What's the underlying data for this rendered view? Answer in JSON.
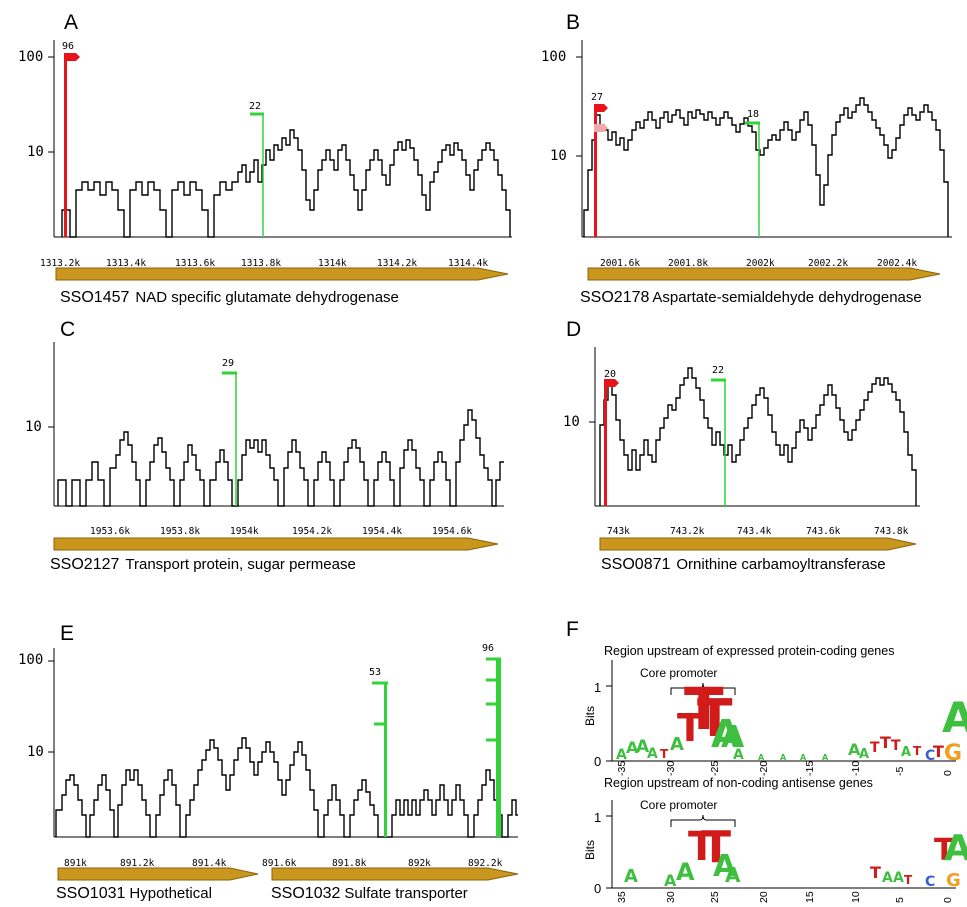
{
  "panels": [
    {
      "letter": "A",
      "yticks": [
        "100",
        "10"
      ],
      "xticks": [
        "1313.2k",
        "1313.4k",
        "1313.6k",
        "1313.8k",
        "1314k",
        "1314.2k",
        "1314.4k"
      ],
      "markers": [
        {
          "label": "96",
          "color": "red",
          "kind": "arrow"
        },
        {
          "label": "22",
          "color": "green",
          "kind": "flag"
        }
      ],
      "genes": [
        {
          "id": "SSO1457",
          "name": "NAD specific glutamate dehydrogenase"
        }
      ]
    },
    {
      "letter": "B",
      "yticks": [
        "100",
        "10"
      ],
      "xticks": [
        "2001.6k",
        "2001.8k",
        "2002k",
        "2002.2k",
        "2002.4k"
      ],
      "markers": [
        {
          "label": "27",
          "color": "red",
          "kind": "arrow"
        },
        {
          "label": "18",
          "color": "green",
          "kind": "flag"
        }
      ],
      "genes": [
        {
          "id": "SSO2178",
          "name": "Aspartate-semialdehyde dehydrogenase"
        }
      ]
    },
    {
      "letter": "C",
      "yticks": [
        "10"
      ],
      "xticks": [
        "1953.6k",
        "1953.8k",
        "1954k",
        "1954.2k",
        "1954.4k",
        "1954.6k"
      ],
      "markers": [
        {
          "label": "29",
          "color": "green",
          "kind": "flag"
        }
      ],
      "genes": [
        {
          "id": "SSO2127",
          "name": "Transport protein, sugar permease"
        }
      ]
    },
    {
      "letter": "D",
      "yticks": [
        "10"
      ],
      "xticks": [
        "743k",
        "743.2k",
        "743.4k",
        "743.6k",
        "743.8k"
      ],
      "markers": [
        {
          "label": "20",
          "color": "red",
          "kind": "arrow"
        },
        {
          "label": "22",
          "color": "green",
          "kind": "flag"
        }
      ],
      "genes": [
        {
          "id": "SSO0871",
          "name": "Ornithine carbamoyltransferase"
        }
      ]
    },
    {
      "letter": "E",
      "yticks": [
        "100",
        "10"
      ],
      "xticks": [
        "891k",
        "891.2k",
        "891.4k",
        "891.6k",
        "891.8k",
        "892k",
        "892.2k"
      ],
      "markers": [
        {
          "label": "53",
          "color": "green",
          "kind": "flag"
        },
        {
          "label": "96",
          "color": "green",
          "kind": "flag"
        }
      ],
      "genes": [
        {
          "id": "SSO1031",
          "name": "Hypothetical"
        },
        {
          "id": "SSO1032",
          "name": "Sulfate transporter"
        }
      ]
    }
  ],
  "logo_panel": {
    "letter": "F",
    "logos": [
      {
        "title": "Region upstream of expressed protein-coding genes",
        "bracket_label": "Core promoter",
        "ylabel": "Bits",
        "yticks": [
          "1",
          "0"
        ],
        "xticks": [
          "-35",
          "-30",
          "-25",
          "-20",
          "-15",
          "-10",
          "-5",
          "0"
        ]
      },
      {
        "title": "Region upstream of non-coding antisense genes",
        "bracket_label": "Core promoter",
        "ylabel": "Bits",
        "yticks": [
          "1",
          "0"
        ],
        "xticks": [
          "35",
          "30",
          "25",
          "20",
          "15",
          "10",
          "5",
          "0"
        ]
      }
    ]
  },
  "colors": {
    "start_red": "#e8141c",
    "start_pink": "#f0a8a8",
    "antisense_green": "#31d33a",
    "gene_arrow": "#c9961e",
    "base_A": "#3fbf3f",
    "base_T": "#d11a1a",
    "base_C": "#3a5fd0",
    "base_G": "#f0a020"
  }
}
